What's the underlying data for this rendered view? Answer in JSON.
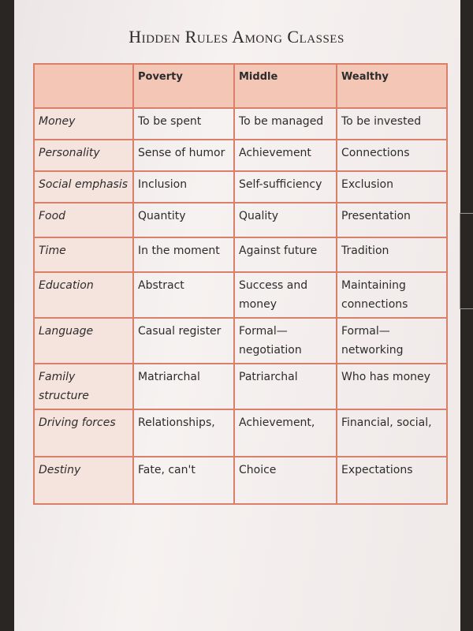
{
  "title": "Hidden Rules Among Classes",
  "table": {
    "header": [
      "Poverty",
      "Middle",
      "Wealthy"
    ],
    "rows": [
      [
        "Money",
        "To be spent",
        "To be managed",
        "To be invested"
      ],
      [
        "Personality",
        "Sense of humor",
        "Achievement",
        "Connections"
      ],
      [
        "Social emphasis",
        "Inclusion",
        "Self-sufficiency",
        "Exclusion"
      ],
      [
        "Food",
        "Quantity",
        "Quality",
        "Presentation"
      ],
      [
        "Time",
        "In the moment",
        "Against future",
        "Tradition"
      ],
      [
        "Education",
        "Abstract",
        "Success and money",
        "Maintaining connections"
      ],
      [
        "Language",
        "Casual register",
        "Formal—negotiation",
        "Formal—networking"
      ],
      [
        "Family structure",
        "Matriarchal",
        "Patriarchal",
        "Who has money"
      ],
      [
        "Driving forces",
        "Relationships,",
        "Achievement,",
        "Financial, social,"
      ],
      [
        "Destiny",
        "Fate, can't",
        "Choice",
        "Expectations"
      ]
    ]
  }
}
